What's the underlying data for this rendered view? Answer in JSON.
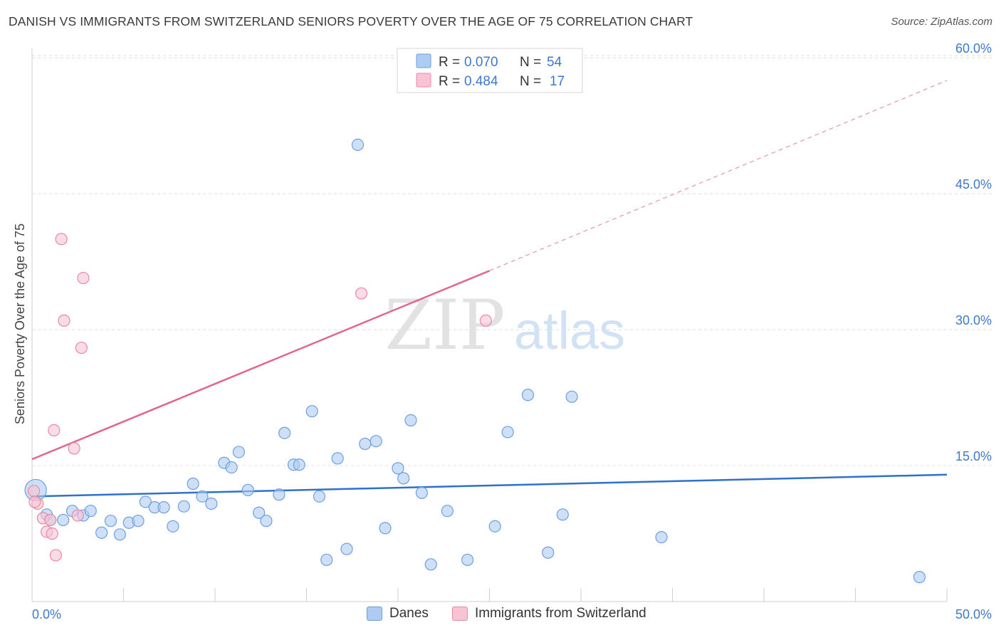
{
  "header": {
    "title": "DANISH VS IMMIGRANTS FROM SWITZERLAND SENIORS POVERTY OVER THE AGE OF 75 CORRELATION CHART",
    "source": "Source: ZipAtlas.com"
  },
  "watermark": {
    "zip": "ZIP",
    "atlas": "atlas"
  },
  "colors": {
    "danes_fill": "#aecbf2",
    "danes_stroke": "#6d9fe0",
    "danes_line": "#2f6fce",
    "swiss_fill": "#f8c3d2",
    "swiss_stroke": "#e78aa5",
    "swiss_line": "#e0658f",
    "value_text": "#3d78cc",
    "grid": "#dcdcdc"
  },
  "legend": {
    "rows": [
      {
        "r_label": "R = ",
        "r_value": "0.070",
        "n_label": "N = ",
        "n_value": "54"
      },
      {
        "r_label": "R = ",
        "r_value": "0.484",
        "n_label": "N = ",
        "n_value": "17"
      }
    ]
  },
  "bottom_legend": {
    "danes": "Danes",
    "swiss": "Immigrants from Switzerland"
  },
  "chart_data": {
    "type": "scatter",
    "title": "DANISH VS IMMIGRANTS FROM SWITZERLAND SENIORS POVERTY OVER THE AGE OF 75 CORRELATION CHART",
    "ylabel": "Seniors Poverty Over the Age of 75",
    "xlim": [
      0,
      50
    ],
    "ylim": [
      0,
      63
    ],
    "x_tick_labels": [
      "0.0%",
      "50.0%"
    ],
    "y_tick_labels": [
      "15.0%",
      "30.0%",
      "45.0%",
      "60.0%"
    ],
    "y_ticks": [
      15,
      30,
      45,
      60
    ],
    "x_ticks": [
      0,
      5,
      10,
      15,
      20,
      25,
      30,
      35,
      40,
      45,
      50
    ],
    "grid": "horizontal dashed",
    "series": [
      {
        "name": "Danes",
        "R": 0.07,
        "N": 54,
        "trend": {
          "x": [
            0,
            50
          ],
          "y": [
            11.6,
            14.0
          ]
        },
        "points": [
          [
            0.2,
            12.3
          ],
          [
            0.8,
            9.6
          ],
          [
            1.0,
            9.0
          ],
          [
            1.7,
            9.0
          ],
          [
            2.2,
            10.0
          ],
          [
            2.8,
            9.5
          ],
          [
            3.2,
            10.0
          ],
          [
            3.8,
            7.6
          ],
          [
            4.3,
            8.9
          ],
          [
            4.8,
            7.4
          ],
          [
            5.3,
            8.7
          ],
          [
            5.8,
            8.9
          ],
          [
            6.2,
            11.0
          ],
          [
            6.7,
            10.4
          ],
          [
            7.2,
            10.4
          ],
          [
            7.7,
            8.3
          ],
          [
            8.3,
            10.5
          ],
          [
            8.8,
            13.0
          ],
          [
            9.3,
            11.6
          ],
          [
            9.8,
            10.8
          ],
          [
            10.5,
            15.3
          ],
          [
            10.9,
            14.8
          ],
          [
            11.3,
            16.5
          ],
          [
            11.8,
            12.3
          ],
          [
            12.4,
            9.8
          ],
          [
            12.8,
            8.9
          ],
          [
            13.5,
            11.8
          ],
          [
            13.8,
            18.6
          ],
          [
            14.3,
            15.1
          ],
          [
            14.6,
            15.1
          ],
          [
            15.3,
            21.0
          ],
          [
            15.7,
            11.6
          ],
          [
            16.1,
            4.6
          ],
          [
            16.7,
            15.8
          ],
          [
            17.2,
            5.8
          ],
          [
            17.8,
            50.4
          ],
          [
            18.2,
            17.4
          ],
          [
            18.8,
            17.7
          ],
          [
            19.3,
            8.1
          ],
          [
            20.0,
            14.7
          ],
          [
            20.3,
            13.6
          ],
          [
            20.7,
            20.0
          ],
          [
            21.3,
            12.0
          ],
          [
            21.8,
            4.1
          ],
          [
            22.7,
            10.0
          ],
          [
            23.8,
            4.6
          ],
          [
            25.3,
            8.3
          ],
          [
            26.0,
            18.7
          ],
          [
            27.1,
            22.8
          ],
          [
            28.2,
            5.4
          ],
          [
            29.0,
            9.6
          ],
          [
            29.5,
            22.6
          ],
          [
            34.4,
            7.1
          ],
          [
            48.5,
            2.7
          ]
        ]
      },
      {
        "name": "Immigrants from Switzerland",
        "R": 0.484,
        "N": 17,
        "trend": {
          "x": [
            0,
            25
          ],
          "y": [
            15.7,
            36.5
          ],
          "dashed_to": {
            "x": 50,
            "y": 57.5
          }
        },
        "points": [
          [
            0.1,
            12.2
          ],
          [
            0.3,
            10.8
          ],
          [
            0.6,
            9.2
          ],
          [
            0.8,
            7.7
          ],
          [
            1.0,
            9.0
          ],
          [
            1.1,
            7.5
          ],
          [
            1.2,
            18.9
          ],
          [
            1.3,
            5.1
          ],
          [
            1.6,
            40.0
          ],
          [
            1.75,
            31.0
          ],
          [
            2.3,
            16.9
          ],
          [
            2.5,
            9.5
          ],
          [
            2.7,
            28.0
          ],
          [
            2.8,
            35.7
          ],
          [
            18.0,
            34.0
          ],
          [
            24.8,
            31.0
          ],
          [
            0.15,
            11.0
          ]
        ]
      }
    ]
  }
}
